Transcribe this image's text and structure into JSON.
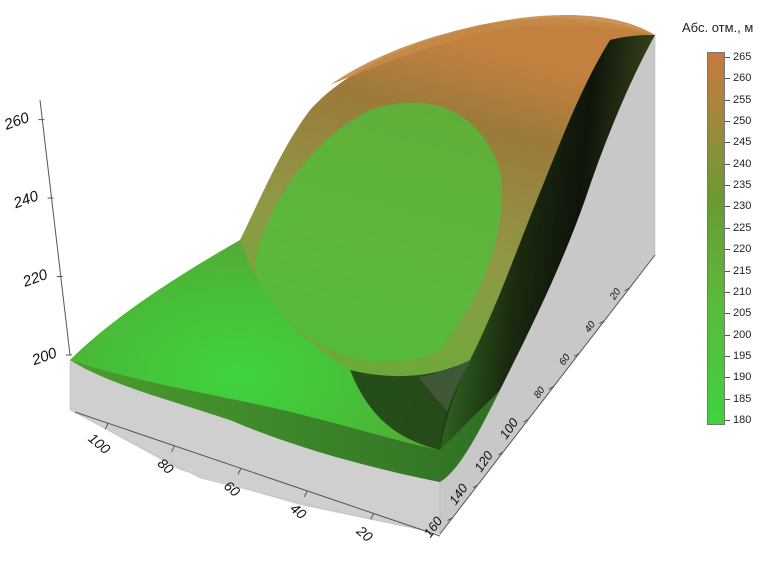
{
  "chart_data": {
    "type": "surface3d",
    "title": "",
    "colorbar": {
      "title": "Абс. отм., м",
      "min": 180,
      "max": 265,
      "ticks": [
        265,
        260,
        255,
        250,
        245,
        240,
        235,
        230,
        225,
        220,
        215,
        210,
        205,
        200,
        195,
        190,
        185,
        180
      ],
      "colors": {
        "low": "#3fd23f",
        "mid": "#6a9a30",
        "high": "#c8783e"
      }
    },
    "z_axis": {
      "ticks": [
        "260",
        "240",
        "220",
        "200"
      ],
      "range": [
        200,
        265
      ]
    },
    "x_axis": {
      "ticks": [
        "100",
        "80",
        "60",
        "40",
        "20"
      ],
      "range": [
        0,
        110
      ]
    },
    "y_axis": {
      "ticks": [
        "20",
        "40",
        "60",
        "80",
        "100",
        "120",
        "140",
        "160"
      ],
      "range": [
        0,
        170
      ]
    },
    "surface_colors": {
      "valley": "#3ccd3c",
      "slope": "#5aaa34",
      "scarp": "#121a0a",
      "crest": "#b8773f",
      "side_wall": "#cccccc"
    }
  }
}
